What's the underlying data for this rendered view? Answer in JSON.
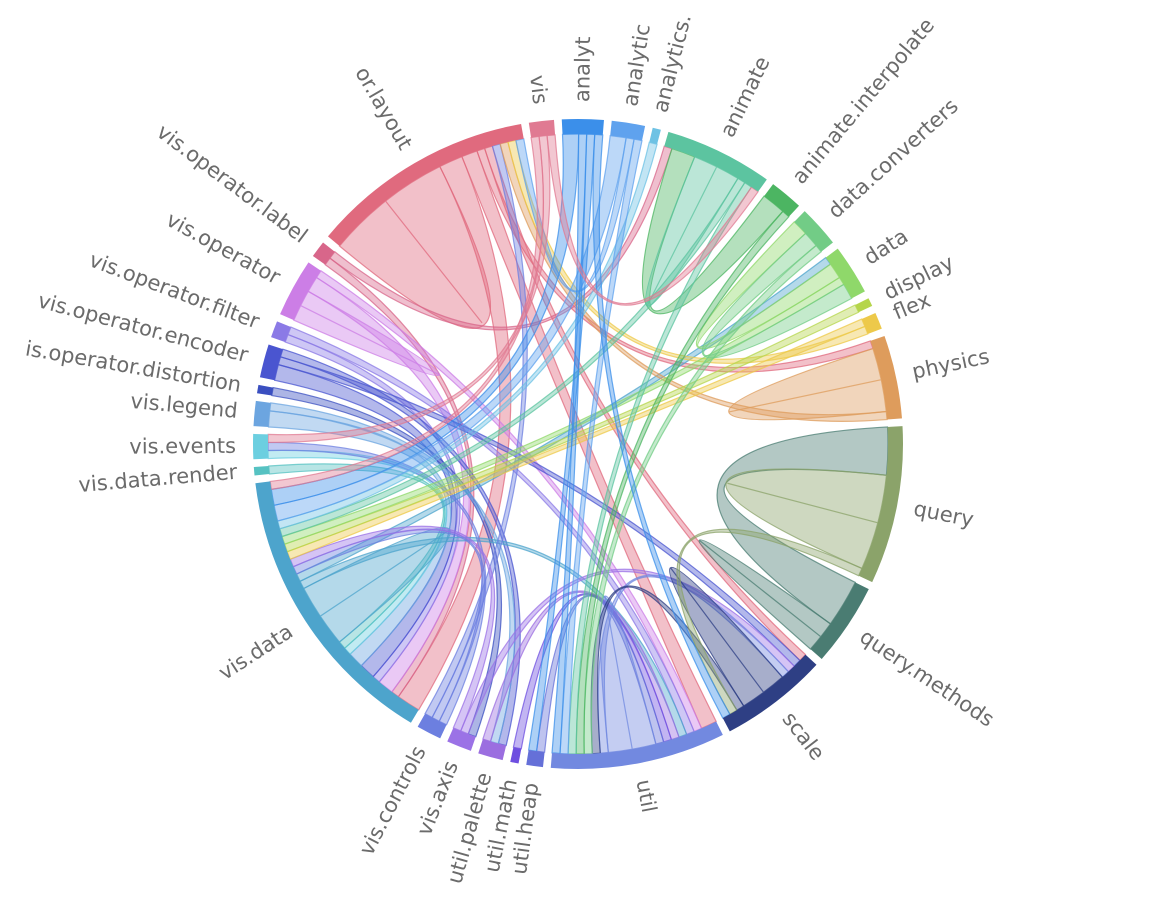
{
  "chart_data": {
    "type": "chord",
    "groups": [
      {
        "name": "analytics.cluster",
        "label": "analyt",
        "color": "#3b8fea"
      },
      {
        "name": "analytics.graph",
        "label": "analytic",
        "color": "#5fa2ee"
      },
      {
        "name": "analytics.optimization",
        "label": "analytics.",
        "color": "#6ec2e4"
      },
      {
        "name": "animate",
        "label": "animate",
        "color": "#5cc4a0"
      },
      {
        "name": "animate.interpolate",
        "label": "animate.interpolate",
        "color": "#4cb562"
      },
      {
        "name": "data.converters",
        "label": "data.converters",
        "color": "#72cc86"
      },
      {
        "name": "data",
        "label": "data",
        "color": "#8fd86a"
      },
      {
        "name": "display",
        "label": "display",
        "color": "#b5d54b"
      },
      {
        "name": "flex",
        "label": "flex",
        "color": "#edc94a"
      },
      {
        "name": "physics",
        "label": "physics",
        "color": "#de9c5c"
      },
      {
        "name": "query",
        "label": "query",
        "color": "#8ba36a"
      },
      {
        "name": "query.methods",
        "label": "query.methods",
        "color": "#4a7c72"
      },
      {
        "name": "scale",
        "label": "scale",
        "color": "#2e3f84"
      },
      {
        "name": "util",
        "label": "util",
        "color": "#7289e0"
      },
      {
        "name": "util.heap",
        "label": "util.heap",
        "color": "#6570d8"
      },
      {
        "name": "util.math",
        "label": "util.math",
        "color": "#6e4fe0"
      },
      {
        "name": "util.palette",
        "label": "util.palette",
        "color": "#9b6ee0"
      },
      {
        "name": "vis.axis",
        "label": "vis.axis",
        "color": "#9b72e6"
      },
      {
        "name": "vis.controls",
        "label": "vis.controls",
        "color": "#6c7fe0"
      },
      {
        "name": "vis.data",
        "label": "vis.data",
        "color": "#4da4cc"
      },
      {
        "name": "vis.data.render",
        "label": "vis.data.render",
        "color": "#56c2c2"
      },
      {
        "name": "vis.events",
        "label": "vis.events",
        "color": "#6ccfe0"
      },
      {
        "name": "vis.legend",
        "label": "vis.legend",
        "color": "#6ca5e0"
      },
      {
        "name": "vis.operator.distortion",
        "label": "is.operator.distortion",
        "color": "#3a4fc0"
      },
      {
        "name": "vis.operator.encoder",
        "label": "vis.operator.encoder",
        "color": "#4a55d0"
      },
      {
        "name": "vis.operator.filter",
        "label": "vis.operator.filter",
        "color": "#8b7ae6"
      },
      {
        "name": "vis.operator",
        "label": "vis.operator",
        "color": "#cc7ee6"
      },
      {
        "name": "vis.operator.label",
        "label": "vis.operator.label",
        "color": "#d8668a"
      },
      {
        "name": "vis.operator.layout",
        "label": "or.layout",
        "color": "#e06a7e"
      },
      {
        "name": "vis",
        "label": "vis",
        "color": "#e07a92"
      }
    ],
    "chords": [
      {
        "source": "vis.operator.layout",
        "target": "vis.operator.layout",
        "value": 8
      },
      {
        "source": "vis.operator.layout",
        "target": "vis.data",
        "value": 3
      },
      {
        "source": "vis.operator.layout",
        "target": "util",
        "value": 2
      },
      {
        "source": "vis.operator.layout",
        "target": "physics",
        "value": 1
      },
      {
        "source": "vis.operator.layout",
        "target": "scale",
        "value": 1
      },
      {
        "source": "vis.operator.label",
        "target": "vis.data",
        "value": 1
      },
      {
        "source": "vis.operator.label",
        "target": "animate",
        "value": 1
      },
      {
        "source": "vis.operator",
        "target": "vis.operator",
        "value": 2
      },
      {
        "source": "vis.operator",
        "target": "vis.data",
        "value": 2
      },
      {
        "source": "vis.operator",
        "target": "util",
        "value": 1
      },
      {
        "source": "vis.operator.filter",
        "target": "vis.data",
        "value": 1
      },
      {
        "source": "vis.operator.filter",
        "target": "util",
        "value": 1
      },
      {
        "source": "vis.operator.encoder",
        "target": "vis.data",
        "value": 2
      },
      {
        "source": "vis.operator.encoder",
        "target": "scale",
        "value": 1
      },
      {
        "source": "vis.operator.encoder",
        "target": "util.palette",
        "value": 1
      },
      {
        "source": "vis.operator.distortion",
        "target": "vis.axis",
        "value": 1
      },
      {
        "source": "vis.legend",
        "target": "vis.data",
        "value": 2
      },
      {
        "source": "vis.legend",
        "target": "util.palette",
        "value": 1
      },
      {
        "source": "vis.events",
        "target": "vis.data",
        "value": 1
      },
      {
        "source": "vis.data.render",
        "target": "vis.data",
        "value": 1
      },
      {
        "source": "vis.data",
        "target": "vis.data",
        "value": 4
      },
      {
        "source": "vis.data",
        "target": "util",
        "value": 1
      },
      {
        "source": "vis.data",
        "target": "data",
        "value": 1
      },
      {
        "source": "vis.controls",
        "target": "vis.events",
        "value": 1
      },
      {
        "source": "vis.controls",
        "target": "vis.data",
        "value": 1
      },
      {
        "source": "vis.controls",
        "target": "vis.operator.layout",
        "value": 1
      },
      {
        "source": "vis.axis",
        "target": "scale",
        "value": 1
      },
      {
        "source": "vis.axis",
        "target": "vis.data",
        "value": 1
      },
      {
        "source": "util.palette",
        "target": "util",
        "value": 1
      },
      {
        "source": "util.math",
        "target": "util",
        "value": 1
      },
      {
        "source": "util.heap",
        "target": "util",
        "value": 1
      },
      {
        "source": "util",
        "target": "util",
        "value": 3
      },
      {
        "source": "util",
        "target": "scale",
        "value": 1
      },
      {
        "source": "scale",
        "target": "scale",
        "value": 3
      },
      {
        "source": "scale",
        "target": "util",
        "value": 1
      },
      {
        "source": "query.methods",
        "target": "query",
        "value": 6
      },
      {
        "source": "query.methods",
        "target": "query.methods",
        "value": 2
      },
      {
        "source": "query",
        "target": "query",
        "value": 6
      },
      {
        "source": "query",
        "target": "scale",
        "value": 1
      },
      {
        "source": "physics",
        "target": "physics",
        "value": 4
      },
      {
        "source": "physics",
        "target": "vis.operator.layout",
        "value": 1
      },
      {
        "source": "flex",
        "target": "vis.data",
        "value": 1
      },
      {
        "source": "flex",
        "target": "vis.operator.layout",
        "value": 1
      },
      {
        "source": "display",
        "target": "vis.data",
        "value": 1
      },
      {
        "source": "data",
        "target": "data.converters",
        "value": 2
      },
      {
        "source": "data",
        "target": "vis.data",
        "value": 1
      },
      {
        "source": "data.converters",
        "target": "data",
        "value": 2
      },
      {
        "source": "data.converters",
        "target": "util",
        "value": 1
      },
      {
        "source": "animate.interpolate",
        "target": "animate",
        "value": 3
      },
      {
        "source": "animate.interpolate",
        "target": "util",
        "value": 1
      },
      {
        "source": "animate",
        "target": "animate",
        "value": 3
      },
      {
        "source": "animate",
        "target": "vis.data",
        "value": 1
      },
      {
        "source": "animate",
        "target": "util",
        "value": 1
      },
      {
        "source": "analytics.optimization",
        "target": "vis.data",
        "value": 1
      },
      {
        "source": "analytics.graph",
        "target": "vis.data",
        "value": 2
      },
      {
        "source": "analytics.graph",
        "target": "vis.operator.layout",
        "value": 1
      },
      {
        "source": "analytics.graph",
        "target": "util",
        "value": 1
      },
      {
        "source": "analytics.cluster",
        "target": "vis.data",
        "value": 2
      },
      {
        "source": "analytics.cluster",
        "target": "util",
        "value": 1
      },
      {
        "source": "analytics.cluster",
        "target": "util.heap",
        "value": 1
      },
      {
        "source": "analytics.cluster",
        "target": "scale",
        "value": 1
      },
      {
        "source": "vis",
        "target": "vis.data",
        "value": 1
      },
      {
        "source": "vis",
        "target": "vis.events",
        "value": 1
      },
      {
        "source": "vis",
        "target": "animate",
        "value": 1
      }
    ]
  }
}
